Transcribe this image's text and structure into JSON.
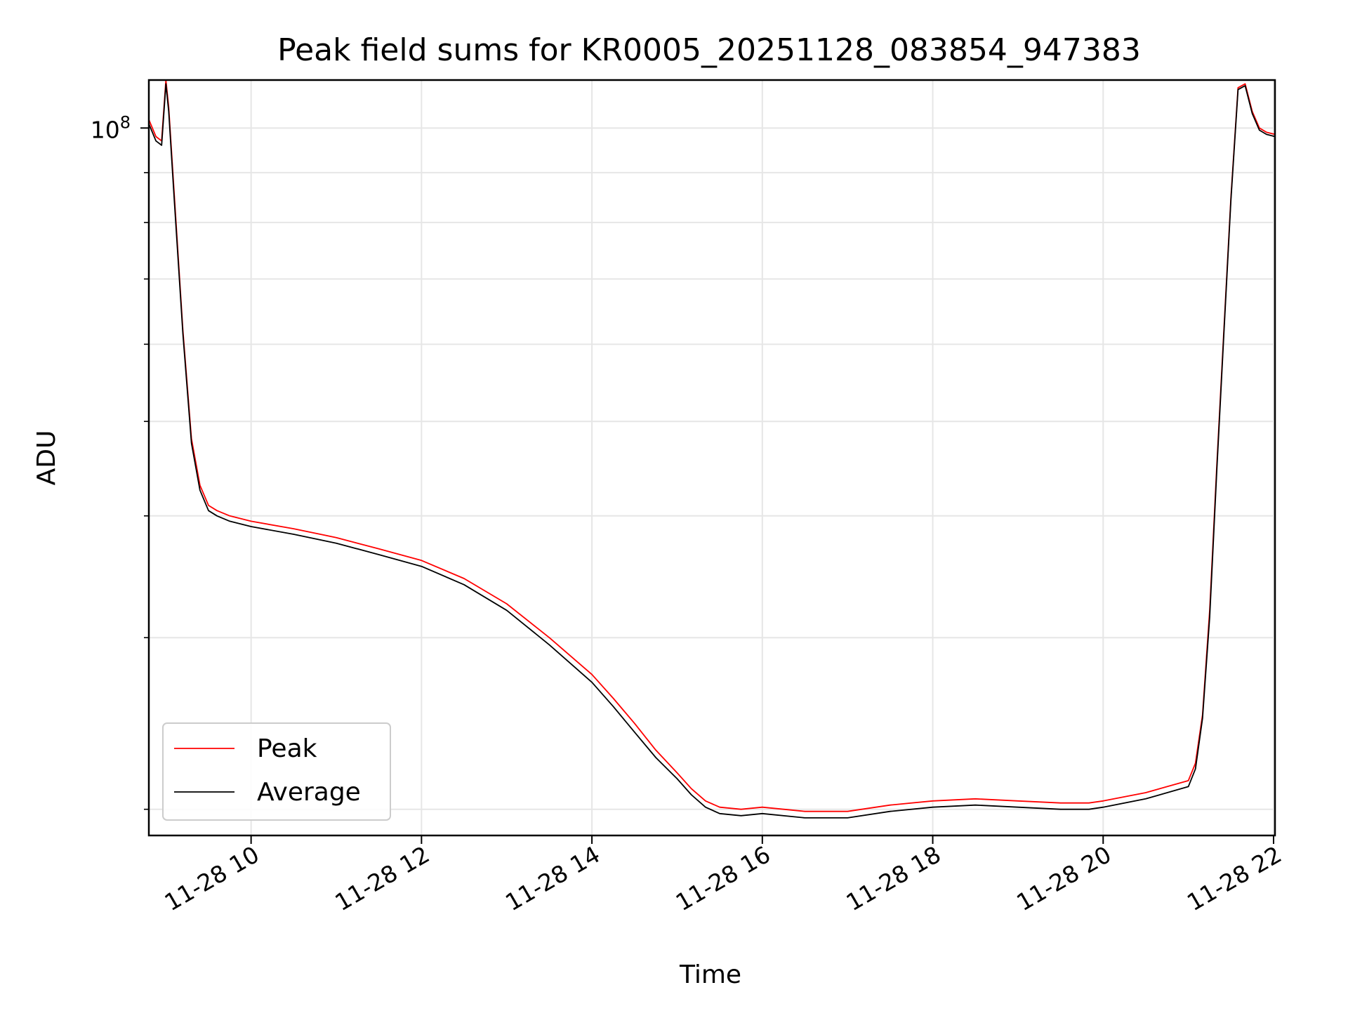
{
  "chart_data": {
    "type": "line",
    "title": "Peak field sums for KR0005_20251128_083854_947383",
    "xlabel": "Time",
    "ylabel": "ADU",
    "yscale": "log",
    "xlim": [
      "2025-11-28 08:48",
      "2025-11-28 22:01"
    ],
    "ylim": [
      18800000,
      112000000
    ],
    "x_ticks": [
      {
        "value": "2025-11-28 10:00",
        "label": "11-28 10"
      },
      {
        "value": "2025-11-28 12:00",
        "label": "11-28 12"
      },
      {
        "value": "2025-11-28 14:00",
        "label": "11-28 14"
      },
      {
        "value": "2025-11-28 16:00",
        "label": "11-28 16"
      },
      {
        "value": "2025-11-28 18:00",
        "label": "11-28 18"
      },
      {
        "value": "2025-11-28 20:00",
        "label": "11-28 20"
      },
      {
        "value": "2025-11-28 22:00",
        "label": "11-28 22"
      }
    ],
    "y_major_ticks": [
      {
        "value": 100000000,
        "base": "10",
        "exp": "8"
      }
    ],
    "y_minor_ticks": [
      20000000,
      30000000,
      40000000,
      50000000,
      60000000,
      70000000,
      80000000,
      90000000
    ],
    "grid": true,
    "legend_position": "lower-left",
    "series": [
      {
        "name": "Peak",
        "color": "#ff0000",
        "x": [
          "2025-11-28 08:48",
          "2025-11-28 08:53",
          "2025-11-28 08:57",
          "2025-11-28 09:00",
          "2025-11-28 09:02",
          "2025-11-28 09:06",
          "2025-11-28 09:12",
          "2025-11-28 09:18",
          "2025-11-28 09:24",
          "2025-11-28 09:30",
          "2025-11-28 09:36",
          "2025-11-28 09:45",
          "2025-11-28 10:00",
          "2025-11-28 10:30",
          "2025-11-28 11:00",
          "2025-11-28 11:30",
          "2025-11-28 12:00",
          "2025-11-28 12:30",
          "2025-11-28 13:00",
          "2025-11-28 13:30",
          "2025-11-28 14:00",
          "2025-11-28 14:15",
          "2025-11-28 14:30",
          "2025-11-28 14:45",
          "2025-11-28 15:00",
          "2025-11-28 15:10",
          "2025-11-28 15:20",
          "2025-11-28 15:30",
          "2025-11-28 15:45",
          "2025-11-28 16:00",
          "2025-11-28 16:30",
          "2025-11-28 17:00",
          "2025-11-28 17:30",
          "2025-11-28 18:00",
          "2025-11-28 18:30",
          "2025-11-28 19:00",
          "2025-11-28 19:30",
          "2025-11-28 19:50",
          "2025-11-28 20:00",
          "2025-11-28 20:30",
          "2025-11-28 21:00",
          "2025-11-28 21:05",
          "2025-11-28 21:10",
          "2025-11-28 21:15",
          "2025-11-28 21:20",
          "2025-11-28 21:25",
          "2025-11-28 21:30",
          "2025-11-28 21:35",
          "2025-11-28 21:40",
          "2025-11-28 21:45",
          "2025-11-28 21:50",
          "2025-11-28 21:55",
          "2025-11-28 22:01"
        ],
        "values": [
          102000000,
          98000000,
          97000000,
          112000000,
          105000000,
          85000000,
          62000000,
          48000000,
          43000000,
          41000000,
          40500000,
          40000000,
          39500000,
          38800000,
          38000000,
          37000000,
          36000000,
          34500000,
          32500000,
          30000000,
          27500000,
          26000000,
          24500000,
          23000000,
          21800000,
          21000000,
          20400000,
          20100000,
          20000000,
          20100000,
          19900000,
          19900000,
          20200000,
          20400000,
          20500000,
          20400000,
          20300000,
          20300000,
          20400000,
          20800000,
          21400000,
          22300000,
          25000000,
          32000000,
          45000000,
          62000000,
          85000000,
          110000000,
          111000000,
          104000000,
          100000000,
          99000000,
          98500000
        ]
      },
      {
        "name": "Average",
        "color": "#000000",
        "x": [
          "2025-11-28 08:48",
          "2025-11-28 08:53",
          "2025-11-28 08:57",
          "2025-11-28 09:00",
          "2025-11-28 09:02",
          "2025-11-28 09:06",
          "2025-11-28 09:12",
          "2025-11-28 09:18",
          "2025-11-28 09:24",
          "2025-11-28 09:30",
          "2025-11-28 09:36",
          "2025-11-28 09:45",
          "2025-11-28 10:00",
          "2025-11-28 10:30",
          "2025-11-28 11:00",
          "2025-11-28 11:30",
          "2025-11-28 12:00",
          "2025-11-28 12:30",
          "2025-11-28 13:00",
          "2025-11-28 13:30",
          "2025-11-28 14:00",
          "2025-11-28 14:15",
          "2025-11-28 14:30",
          "2025-11-28 14:45",
          "2025-11-28 15:00",
          "2025-11-28 15:10",
          "2025-11-28 15:20",
          "2025-11-28 15:30",
          "2025-11-28 15:45",
          "2025-11-28 16:00",
          "2025-11-28 16:30",
          "2025-11-28 17:00",
          "2025-11-28 17:30",
          "2025-11-28 18:00",
          "2025-11-28 18:30",
          "2025-11-28 19:00",
          "2025-11-28 19:30",
          "2025-11-28 19:50",
          "2025-11-28 20:00",
          "2025-11-28 20:30",
          "2025-11-28 21:00",
          "2025-11-28 21:05",
          "2025-11-28 21:10",
          "2025-11-28 21:15",
          "2025-11-28 21:20",
          "2025-11-28 21:25",
          "2025-11-28 21:30",
          "2025-11-28 21:35",
          "2025-11-28 21:40",
          "2025-11-28 21:45",
          "2025-11-28 21:50",
          "2025-11-28 21:55",
          "2025-11-28 22:01"
        ],
        "values": [
          101000000,
          97000000,
          96000000,
          111000000,
          104000000,
          84000000,
          61500000,
          47500000,
          42500000,
          40500000,
          40000000,
          39500000,
          39000000,
          38300000,
          37500000,
          36500000,
          35500000,
          34000000,
          32000000,
          29500000,
          27000000,
          25500000,
          24000000,
          22600000,
          21500000,
          20700000,
          20100000,
          19800000,
          19700000,
          19800000,
          19600000,
          19600000,
          19900000,
          20100000,
          20200000,
          20100000,
          20000000,
          20000000,
          20100000,
          20500000,
          21100000,
          22000000,
          24800000,
          31500000,
          44500000,
          61500000,
          84500000,
          109500000,
          110500000,
          103500000,
          99500000,
          98500000,
          98000000
        ]
      }
    ]
  }
}
